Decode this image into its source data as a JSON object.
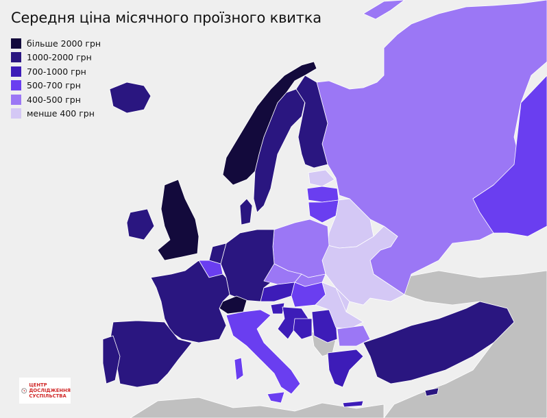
{
  "title": "Середня ціна місячного проїзного квитка",
  "legend": [
    {
      "label": "більше 2000 грн",
      "color": "#130a3c"
    },
    {
      "label": "1000-2000 грн",
      "color": "#2a1680"
    },
    {
      "label": "700-1000 грн",
      "color": "#3d1cb8"
    },
    {
      "label": "500-700 грн",
      "color": "#6a3ef0"
    },
    {
      "label": "400-500 грн",
      "color": "#9b77f5"
    },
    {
      "label": "менше 400 грн",
      "color": "#d4c8f5"
    }
  ],
  "colors": {
    "sea": "#efefef",
    "no_data": "#c0c0c0",
    "border": "#ffffff"
  },
  "logo": {
    "line1": "ЦЕНТР",
    "line2": "ДОСЛІДЖЕННЯ",
    "line3": "СУСПІЛЬСТВА"
  }
}
